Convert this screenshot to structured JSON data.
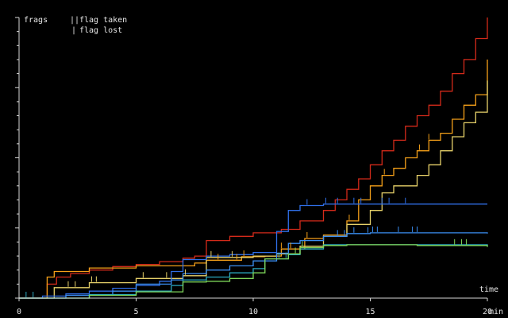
{
  "colors": {
    "background": "#000000",
    "axis": "#d8d8d8",
    "text": "#e6e6e6"
  },
  "legend": {
    "ylabel": "frags",
    "taken_marker": "||",
    "taken_label": "flag taken",
    "lost_marker": "|",
    "lost_label": "flag lost"
  },
  "chart_data": {
    "type": "line",
    "title": "",
    "xlabel": "time",
    "xunit": "min",
    "ylabel": "frags",
    "xlim": [
      0,
      20
    ],
    "ylim": [
      0,
      40
    ],
    "xticks": [
      0,
      5,
      10,
      15,
      20
    ],
    "xtick_labels": [
      "0",
      "5",
      "10",
      "15",
      "20"
    ],
    "yticks_minor": [
      0,
      2,
      4,
      6,
      8,
      10,
      12,
      14,
      16,
      18,
      20,
      22,
      24,
      26,
      28,
      30,
      32,
      34,
      36,
      38,
      40
    ],
    "yticks_major": [
      0,
      10,
      20,
      30,
      40
    ],
    "ytick_labels": [],
    "grid": false,
    "legend_position": "top-left",
    "step": true,
    "series": [
      {
        "color": "#d42a1a",
        "points": [
          [
            0,
            0
          ],
          [
            1.2,
            2
          ],
          [
            1.6,
            3
          ],
          [
            2.2,
            3.5
          ],
          [
            3.0,
            4
          ],
          [
            4.0,
            4.5
          ],
          [
            5.0,
            4.8
          ],
          [
            6.0,
            5.2
          ],
          [
            7.0,
            5.7
          ],
          [
            7.5,
            6.0
          ],
          [
            8.0,
            8.2
          ],
          [
            9.0,
            8.8
          ],
          [
            10.0,
            9.3
          ],
          [
            11.2,
            9.8
          ],
          [
            12.0,
            11.0
          ],
          [
            13.0,
            12.5
          ],
          [
            13.5,
            14.0
          ],
          [
            14.0,
            15.5
          ],
          [
            14.5,
            17.0
          ],
          [
            15.0,
            19.0
          ],
          [
            15.5,
            21.0
          ],
          [
            16.0,
            22.5
          ],
          [
            16.5,
            24.5
          ],
          [
            17.0,
            26.0
          ],
          [
            17.5,
            27.5
          ],
          [
            18.0,
            29.5
          ],
          [
            18.5,
            32.0
          ],
          [
            19.0,
            34.0
          ],
          [
            19.5,
            37.0
          ],
          [
            20.0,
            40.0
          ]
        ]
      },
      {
        "color": "#f5a019",
        "points": [
          [
            0,
            0
          ],
          [
            1.2,
            3.0
          ],
          [
            1.5,
            3.8
          ],
          [
            3.0,
            4.3
          ],
          [
            5.0,
            4.6
          ],
          [
            7.5,
            5.0
          ],
          [
            8.0,
            5.4
          ],
          [
            9.5,
            5.9
          ],
          [
            10.5,
            6.0
          ],
          [
            11.2,
            7.0
          ],
          [
            12.2,
            8.5
          ],
          [
            13.0,
            9.0
          ],
          [
            14.0,
            11.0
          ],
          [
            14.5,
            14.0
          ],
          [
            15.0,
            16.0
          ],
          [
            15.5,
            17.5
          ],
          [
            16.0,
            18.5
          ],
          [
            16.5,
            20.0
          ],
          [
            17.0,
            21.0
          ],
          [
            17.5,
            22.5
          ],
          [
            18.0,
            23.5
          ],
          [
            18.5,
            25.5
          ],
          [
            19.0,
            27.5
          ],
          [
            19.5,
            29.0
          ],
          [
            20.0,
            34.0
          ]
        ]
      },
      {
        "color": "#e8d26a",
        "points": [
          [
            0,
            0
          ],
          [
            1.5,
            1.5
          ],
          [
            3.0,
            2.2
          ],
          [
            5.0,
            2.8
          ],
          [
            7.0,
            3.2
          ],
          [
            8.0,
            5.8
          ],
          [
            10.0,
            6.0
          ],
          [
            11.0,
            6.3
          ],
          [
            12.0,
            7.4
          ],
          [
            13.0,
            8.8
          ],
          [
            14.0,
            10.5
          ],
          [
            15.0,
            12.5
          ],
          [
            15.5,
            15.0
          ],
          [
            16.0,
            16.0
          ],
          [
            17.0,
            17.5
          ],
          [
            17.5,
            19.0
          ],
          [
            18.0,
            21.0
          ],
          [
            18.5,
            23.0
          ],
          [
            19.0,
            25.0
          ],
          [
            19.5,
            26.5
          ],
          [
            20.0,
            31.0
          ]
        ]
      },
      {
        "color": "#2f6ee6",
        "points": [
          [
            0,
            0
          ],
          [
            1.0,
            0.3
          ],
          [
            2.0,
            0.6
          ],
          [
            3.0,
            1.0
          ],
          [
            4.0,
            1.4
          ],
          [
            5.0,
            1.8
          ],
          [
            6.0,
            2.4
          ],
          [
            6.5,
            3.8
          ],
          [
            7.0,
            5.5
          ],
          [
            8.0,
            6.0
          ],
          [
            9.0,
            6.2
          ],
          [
            10.0,
            6.5
          ],
          [
            11.0,
            9.5
          ],
          [
            11.5,
            12.5
          ],
          [
            12.0,
            13.2
          ],
          [
            13.0,
            13.4
          ],
          [
            15.0,
            13.4
          ],
          [
            20.0,
            13.4
          ]
        ]
      },
      {
        "color": "#3a8df0",
        "points": [
          [
            0,
            0
          ],
          [
            2.0,
            0.4
          ],
          [
            4.0,
            1.0
          ],
          [
            5.0,
            2.0
          ],
          [
            6.5,
            2.6
          ],
          [
            7.0,
            3.5
          ],
          [
            8.0,
            4.0
          ],
          [
            9.0,
            4.6
          ],
          [
            10.0,
            5.3
          ],
          [
            11.0,
            6.4
          ],
          [
            11.5,
            7.8
          ],
          [
            12.0,
            8.2
          ],
          [
            13.0,
            8.8
          ],
          [
            14.0,
            9.2
          ],
          [
            15.0,
            9.3
          ],
          [
            20.0,
            9.2
          ]
        ]
      },
      {
        "color": "#2aa8c0",
        "points": [
          [
            0,
            0
          ],
          [
            3.0,
            0.5
          ],
          [
            5.0,
            1.0
          ],
          [
            6.5,
            1.8
          ],
          [
            7.0,
            2.6
          ],
          [
            8.0,
            3.0
          ],
          [
            9.0,
            3.6
          ],
          [
            10.0,
            4.2
          ],
          [
            10.5,
            5.6
          ],
          [
            11.5,
            6.2
          ],
          [
            12.0,
            7.0
          ],
          [
            13.0,
            7.6
          ],
          [
            20.0,
            7.4
          ]
        ]
      },
      {
        "color": "#7ed65a",
        "points": [
          [
            0,
            0
          ],
          [
            3.0,
            0.4
          ],
          [
            5.0,
            0.9
          ],
          [
            7.0,
            2.3
          ],
          [
            8.0,
            2.4
          ],
          [
            9.0,
            2.8
          ],
          [
            10.0,
            3.6
          ],
          [
            10.5,
            5.6
          ],
          [
            11.5,
            6.3
          ],
          [
            12.0,
            7.2
          ],
          [
            13.0,
            7.5
          ],
          [
            14.0,
            7.6
          ],
          [
            17.0,
            7.5
          ],
          [
            20.0,
            7.3
          ]
        ]
      }
    ],
    "flag_ticks": [
      {
        "color": "#e8d26a",
        "x": [
          2.1,
          2.4,
          3.1,
          3.3,
          5.3,
          6.3,
          7.1,
          8.2,
          9.1
        ]
      },
      {
        "color": "#f5a019",
        "x": [
          8.5,
          9.3,
          9.6,
          11.2,
          11.6,
          12.3,
          14.1,
          15.6,
          17.1,
          17.5
        ]
      },
      {
        "color": "#2f6ee6",
        "x": [
          12.3,
          13.1,
          13.6,
          14.3,
          14.6,
          15.5,
          15.8,
          16.5
        ]
      },
      {
        "color": "#3a8df0",
        "x": [
          13.6,
          13.9,
          14.3,
          14.9,
          15.1,
          15.3,
          16.2,
          16.8,
          17.0
        ]
      },
      {
        "color": "#7ed65a",
        "x": [
          11.8,
          12.1,
          18.6,
          18.9,
          19.1
        ]
      },
      {
        "color": "#2aa8c0",
        "x": [
          0.3,
          0.6,
          11.1,
          11.4
        ]
      }
    ]
  }
}
